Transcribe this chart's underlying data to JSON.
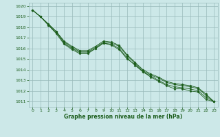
{
  "bg_color": "#cce8e8",
  "grid_color": "#99bbbb",
  "line_color": "#1a5c1a",
  "marker_color": "#1a5c1a",
  "xlabel": "Graphe pression niveau de la mer (hPa)",
  "xlabel_color": "#1a5c1a",
  "ylabel_color": "#1a5c1a",
  "ylim": [
    1010.5,
    1020.3
  ],
  "xlim": [
    -0.5,
    23.5
  ],
  "yticks": [
    1011,
    1012,
    1013,
    1014,
    1015,
    1016,
    1017,
    1018,
    1019,
    1020
  ],
  "xticks": [
    0,
    1,
    2,
    3,
    4,
    5,
    6,
    7,
    8,
    9,
    10,
    11,
    12,
    13,
    14,
    15,
    16,
    17,
    18,
    19,
    20,
    21,
    22,
    23
  ],
  "series": [
    [
      1019.6,
      1019.0,
      1018.2,
      1017.4,
      1016.4,
      1015.9,
      1015.5,
      1015.5,
      1016.0,
      1016.5,
      1016.3,
      1015.9,
      1015.0,
      1014.5,
      1013.8,
      1013.3,
      1012.9,
      1012.5,
      1012.2,
      1012.2,
      1012.0,
      1011.9,
      1011.2,
      1011.0
    ],
    [
      1019.6,
      1019.0,
      1018.2,
      1017.5,
      1016.5,
      1016.0,
      1015.6,
      1015.6,
      1016.0,
      1016.5,
      1016.4,
      1016.0,
      1015.1,
      1014.4,
      1013.8,
      1013.4,
      1013.0,
      1012.6,
      1012.4,
      1012.3,
      1012.2,
      1012.0,
      1011.4,
      1011.0
    ],
    [
      1019.6,
      1019.0,
      1018.3,
      1017.6,
      1016.6,
      1016.1,
      1015.7,
      1015.7,
      1016.1,
      1016.6,
      1016.5,
      1016.2,
      1015.3,
      1014.6,
      1013.9,
      1013.5,
      1013.2,
      1012.8,
      1012.6,
      1012.5,
      1012.4,
      1012.2,
      1011.6,
      1011.0
    ],
    [
      1019.6,
      1019.0,
      1018.3,
      1017.6,
      1016.7,
      1016.2,
      1015.8,
      1015.8,
      1016.2,
      1016.7,
      1016.6,
      1016.3,
      1015.4,
      1014.7,
      1014.0,
      1013.6,
      1013.3,
      1012.9,
      1012.7,
      1012.6,
      1012.5,
      1012.3,
      1011.7,
      1011.0
    ]
  ]
}
